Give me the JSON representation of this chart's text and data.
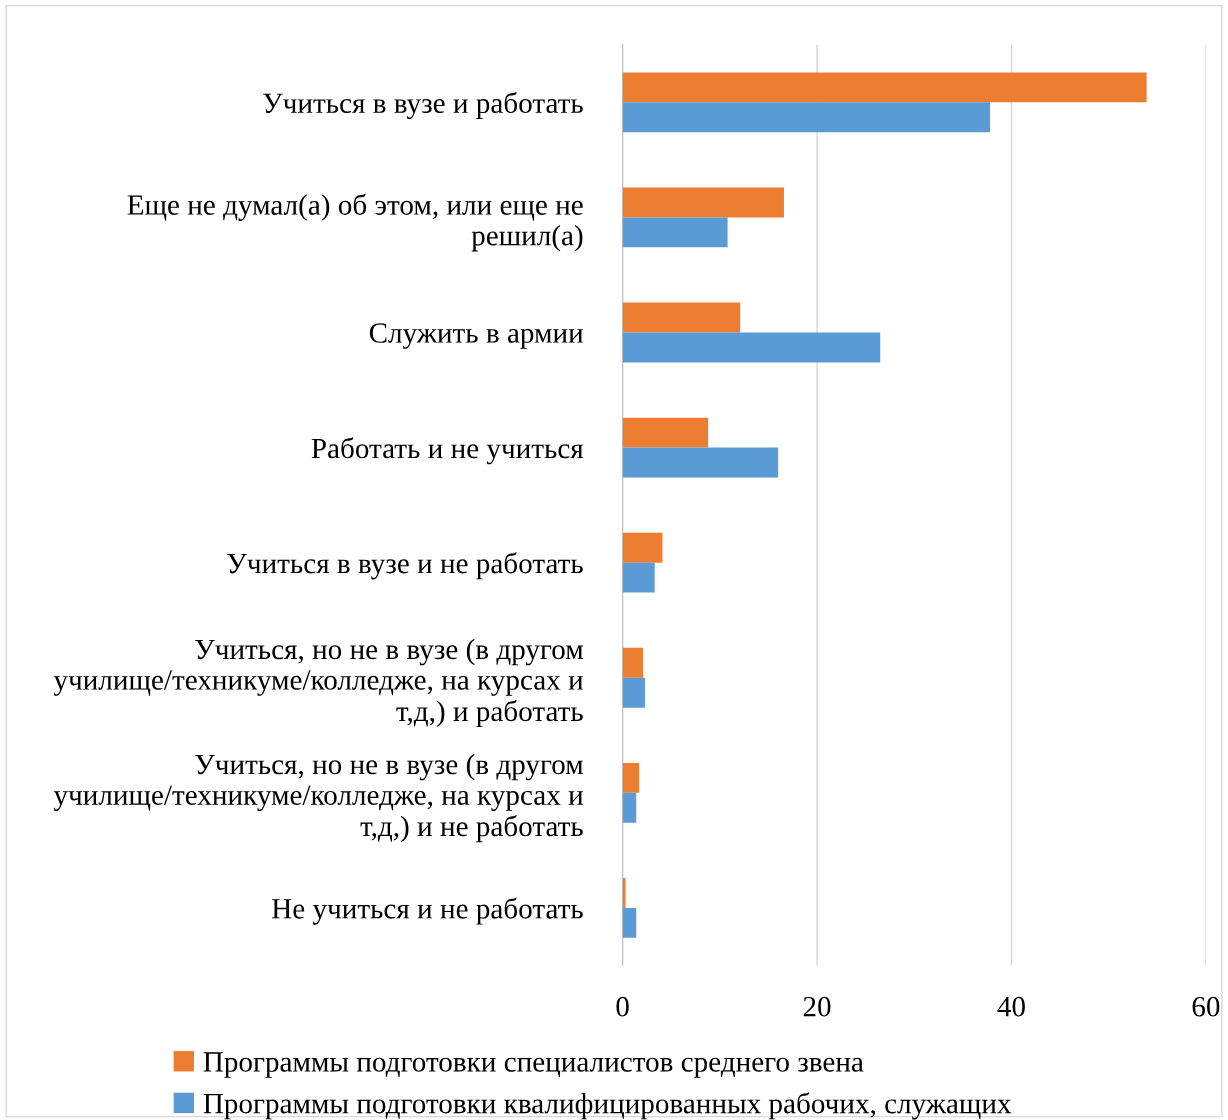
{
  "chart_data": {
    "type": "bar",
    "orientation": "horizontal",
    "categories": [
      "Учиться в вузе и работать",
      "Еще не думал(а) об этом, или еще не\nрешил(а)",
      "Служить в армии",
      "Работать и не учиться",
      "Учиться в вузе и не работать",
      "Учиться, но не в вузе (в другом\nучилище/техникуме/колледже, на курсах и\nт,д,) и работать",
      "Учиться, но не в вузе (в другом\nучилище/техникуме/колледже, на курсах и\nт,д,) и не работать",
      "Не учиться и не работать"
    ],
    "series": [
      {
        "name": "Программы подготовки специалистов среднего звена",
        "color": "#ed7d31",
        "values": [
          53.9,
          16.6,
          12.1,
          8.8,
          4.1,
          2.1,
          1.7,
          0.3
        ]
      },
      {
        "name": "Программы подготовки квалифицированных рабочих, служащих",
        "color": "#5b9bd5",
        "values": [
          37.8,
          10.8,
          26.5,
          16.0,
          3.3,
          2.3,
          1.4,
          1.4
        ]
      }
    ],
    "xlim": [
      0,
      60
    ],
    "xticks": [
      0,
      20,
      40,
      60
    ],
    "grid": "x",
    "legend": "bottom"
  }
}
